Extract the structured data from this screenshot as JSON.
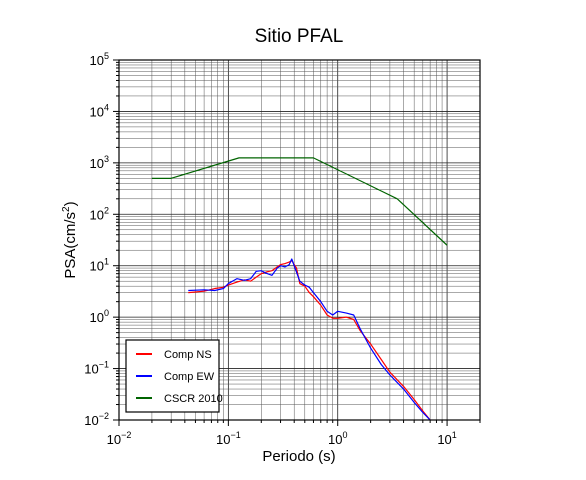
{
  "chart_data": {
    "type": "line",
    "title": "Sitio PFAL",
    "xlabel": "Periodo (s)",
    "ylabel_base": "PSA(cm/s",
    "ylabel_exp": "2",
    "ylabel_close": ")",
    "x_scale": "log",
    "y_scale": "log",
    "xlim": [
      0.01,
      20
    ],
    "ylim": [
      0.01,
      100000
    ],
    "grid": true,
    "legend_position": "bottom-left",
    "x_ticks": [
      {
        "value": 0.01,
        "base": "10",
        "exp": "−2"
      },
      {
        "value": 0.1,
        "base": "10",
        "exp": "−1"
      },
      {
        "value": 1,
        "base": "10",
        "exp": "0"
      },
      {
        "value": 10,
        "base": "10",
        "exp": "1"
      }
    ],
    "y_ticks": [
      {
        "value": 0.01,
        "base": "10",
        "exp": "−2"
      },
      {
        "value": 0.1,
        "base": "10",
        "exp": "−1"
      },
      {
        "value": 1,
        "base": "10",
        "exp": "0"
      },
      {
        "value": 10,
        "base": "10",
        "exp": "1"
      },
      {
        "value": 100,
        "base": "10",
        "exp": "2"
      },
      {
        "value": 1000,
        "base": "10",
        "exp": "3"
      },
      {
        "value": 10000,
        "base": "10",
        "exp": "4"
      },
      {
        "value": 100000,
        "base": "10",
        "exp": "5"
      }
    ],
    "series": [
      {
        "name": "Comp NS",
        "color": "#ff0000",
        "points": [
          [
            0.043,
            3.0
          ],
          [
            0.06,
            3.2
          ],
          [
            0.075,
            3.6
          ],
          [
            0.09,
            3.8
          ],
          [
            0.1,
            4.2
          ],
          [
            0.12,
            4.8
          ],
          [
            0.14,
            5.3
          ],
          [
            0.16,
            5.0
          ],
          [
            0.18,
            6.0
          ],
          [
            0.2,
            7.0
          ],
          [
            0.22,
            7.5
          ],
          [
            0.25,
            8.0
          ],
          [
            0.28,
            9.5
          ],
          [
            0.3,
            10.5
          ],
          [
            0.33,
            11.0
          ],
          [
            0.36,
            11.8
          ],
          [
            0.38,
            12.5
          ],
          [
            0.42,
            9.0
          ],
          [
            0.45,
            4.5
          ],
          [
            0.5,
            4.0
          ],
          [
            0.55,
            3.0
          ],
          [
            0.6,
            2.5
          ],
          [
            0.7,
            1.7
          ],
          [
            0.8,
            1.1
          ],
          [
            0.9,
            0.95
          ],
          [
            1.0,
            0.95
          ],
          [
            1.2,
            1.0
          ],
          [
            1.4,
            0.9
          ],
          [
            1.6,
            0.55
          ],
          [
            2.0,
            0.3
          ],
          [
            2.5,
            0.15
          ],
          [
            3.0,
            0.085
          ],
          [
            4.0,
            0.045
          ],
          [
            5.0,
            0.025
          ],
          [
            6.0,
            0.015
          ],
          [
            7.0,
            0.01
          ]
        ]
      },
      {
        "name": "Comp EW",
        "color": "#0000ff",
        "points": [
          [
            0.043,
            3.3
          ],
          [
            0.06,
            3.4
          ],
          [
            0.075,
            3.3
          ],
          [
            0.09,
            3.6
          ],
          [
            0.1,
            4.5
          ],
          [
            0.12,
            5.6
          ],
          [
            0.14,
            5.2
          ],
          [
            0.16,
            5.6
          ],
          [
            0.18,
            7.8
          ],
          [
            0.2,
            8.0
          ],
          [
            0.22,
            7.2
          ],
          [
            0.25,
            6.5
          ],
          [
            0.28,
            9.0
          ],
          [
            0.3,
            10.0
          ],
          [
            0.33,
            9.5
          ],
          [
            0.36,
            10.5
          ],
          [
            0.38,
            13.5
          ],
          [
            0.42,
            7.5
          ],
          [
            0.45,
            5.0
          ],
          [
            0.5,
            4.2
          ],
          [
            0.55,
            3.8
          ],
          [
            0.6,
            3.0
          ],
          [
            0.7,
            2.0
          ],
          [
            0.8,
            1.3
          ],
          [
            0.9,
            1.1
          ],
          [
            1.0,
            1.3
          ],
          [
            1.2,
            1.2
          ],
          [
            1.4,
            1.1
          ],
          [
            1.6,
            0.6
          ],
          [
            2.0,
            0.25
          ],
          [
            2.5,
            0.12
          ],
          [
            3.0,
            0.075
          ],
          [
            4.0,
            0.04
          ],
          [
            5.0,
            0.022
          ],
          [
            6.0,
            0.014
          ],
          [
            7.0,
            0.01
          ]
        ]
      },
      {
        "name": "CSCR 2010",
        "color": "#006400",
        "points": [
          [
            0.02,
            500
          ],
          [
            0.03,
            500
          ],
          [
            0.125,
            1250
          ],
          [
            0.6,
            1250
          ],
          [
            3.5,
            200
          ],
          [
            10,
            25
          ]
        ]
      }
    ]
  }
}
